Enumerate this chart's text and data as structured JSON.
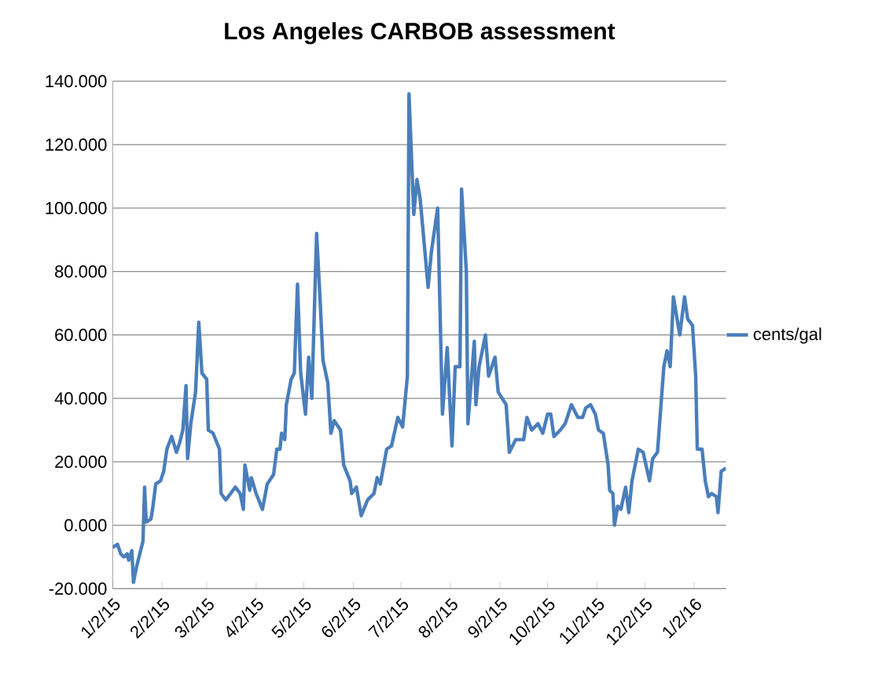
{
  "chart_data": {
    "type": "line",
    "title": "Los Angeles CARBOB assessment",
    "x": [
      "2015-01-02",
      "2015-01-05",
      "2015-01-07",
      "2015-01-09",
      "2015-01-11",
      "2015-01-12",
      "2015-01-14",
      "2015-01-15",
      "2015-01-17",
      "2015-01-19",
      "2015-01-21",
      "2015-01-22",
      "2015-01-23",
      "2015-01-26",
      "2015-01-27",
      "2015-01-29",
      "2015-02-01",
      "2015-02-03",
      "2015-02-05",
      "2015-02-08",
      "2015-02-11",
      "2015-02-13",
      "2015-02-15",
      "2015-02-17",
      "2015-02-18",
      "2015-02-20",
      "2015-02-23",
      "2015-02-25",
      "2015-02-27",
      "2015-03-02",
      "2015-03-03",
      "2015-03-06",
      "2015-03-10",
      "2015-03-11",
      "2015-03-14",
      "2015-03-17",
      "2015-03-20",
      "2015-03-23",
      "2015-03-25",
      "2015-03-26",
      "2015-03-29",
      "2015-03-30",
      "2015-04-02",
      "2015-04-06",
      "2015-04-09",
      "2015-04-13",
      "2015-04-15",
      "2015-04-17",
      "2015-04-18",
      "2015-04-20",
      "2015-04-21",
      "2015-04-24",
      "2015-04-26",
      "2015-04-28",
      "2015-04-30",
      "2015-05-03",
      "2015-05-05",
      "2015-05-07",
      "2015-05-10",
      "2015-05-12",
      "2015-05-14",
      "2015-05-17",
      "2015-05-19",
      "2015-05-21",
      "2015-05-25",
      "2015-05-27",
      "2015-05-31",
      "2015-06-01",
      "2015-06-04",
      "2015-06-07",
      "2015-06-11",
      "2015-06-15",
      "2015-06-17",
      "2015-06-19",
      "2015-06-23",
      "2015-06-26",
      "2015-06-30",
      "2015-07-03",
      "2015-07-06",
      "2015-07-07",
      "2015-07-10",
      "2015-07-12",
      "2015-07-14",
      "2015-07-19",
      "2015-07-21",
      "2015-07-25",
      "2015-07-28",
      "2015-07-31",
      "2015-08-03",
      "2015-08-05",
      "2015-08-08",
      "2015-08-09",
      "2015-08-12",
      "2015-08-13",
      "2015-08-17",
      "2015-08-18",
      "2015-08-20",
      "2015-08-24",
      "2015-08-26",
      "2015-08-30",
      "2015-09-01",
      "2015-09-06",
      "2015-09-08",
      "2015-09-12",
      "2015-09-17",
      "2015-09-19",
      "2015-09-22",
      "2015-09-26",
      "2015-09-29",
      "2015-10-02",
      "2015-10-04",
      "2015-10-06",
      "2015-10-10",
      "2015-10-13",
      "2015-10-17",
      "2015-10-21",
      "2015-10-24",
      "2015-10-26",
      "2015-10-29",
      "2015-11-01",
      "2015-11-03",
      "2015-11-06",
      "2015-11-09",
      "2015-11-10",
      "2015-11-12",
      "2015-11-13",
      "2015-11-15",
      "2015-11-17",
      "2015-11-20",
      "2015-11-22",
      "2015-11-24",
      "2015-11-28",
      "2015-12-01",
      "2015-12-05",
      "2015-12-07",
      "2015-12-10",
      "2015-12-14",
      "2015-12-16",
      "2015-12-18",
      "2015-12-20",
      "2015-12-23",
      "2015-12-24",
      "2015-12-27",
      "2015-12-29",
      "2016-01-01",
      "2016-01-03",
      "2016-01-04",
      "2016-01-07",
      "2016-01-09",
      "2016-01-11",
      "2016-01-13",
      "2016-01-16",
      "2016-01-17",
      "2016-01-19",
      "2016-01-22"
    ],
    "series": [
      {
        "name": "cents/gal",
        "color": "#4a7ebb",
        "values": [
          -7,
          -6,
          -9,
          -10,
          -9,
          -11,
          -8,
          -18,
          -13,
          -9,
          -5,
          12,
          1,
          2,
          5,
          13,
          14,
          17,
          24,
          28,
          23,
          26,
          30,
          44,
          21,
          32,
          42,
          64,
          48,
          46,
          30,
          29,
          24,
          10,
          8,
          10,
          12,
          10,
          5,
          19,
          11,
          15,
          10,
          5,
          13,
          16,
          24,
          24,
          29,
          27,
          38,
          46,
          48,
          76,
          48,
          35,
          53,
          40,
          92,
          73,
          52,
          45,
          29,
          33,
          30,
          19,
          14,
          10,
          12,
          3,
          8,
          10,
          15,
          13,
          24,
          25,
          34,
          31,
          47,
          136,
          98,
          109,
          103,
          75,
          86,
          100,
          35,
          56,
          25,
          50,
          50,
          106,
          80,
          32,
          58,
          38,
          50,
          60,
          47,
          53,
          42,
          38,
          23,
          27,
          27,
          34,
          30,
          32,
          29,
          35,
          35,
          28,
          30,
          32,
          38,
          34,
          34,
          37,
          38,
          35,
          30,
          29,
          19,
          11,
          10,
          0,
          6,
          5,
          12,
          4,
          14,
          24,
          23,
          14,
          21,
          23,
          50,
          55,
          50,
          72,
          63,
          60,
          72,
          65,
          63,
          47,
          24,
          24,
          14,
          9,
          10,
          9,
          4,
          17,
          18
        ]
      }
    ],
    "xlim": [
      "2015-01-02",
      "2016-01-22"
    ],
    "xticks": [
      {
        "value": "2015-01-02",
        "label": "1/2/15"
      },
      {
        "value": "2015-02-02",
        "label": "2/2/15"
      },
      {
        "value": "2015-03-02",
        "label": "3/2/15"
      },
      {
        "value": "2015-04-02",
        "label": "4/2/15"
      },
      {
        "value": "2015-05-02",
        "label": "5/2/15"
      },
      {
        "value": "2015-06-02",
        "label": "6/2/15"
      },
      {
        "value": "2015-07-02",
        "label": "7/2/15"
      },
      {
        "value": "2015-08-02",
        "label": "8/2/15"
      },
      {
        "value": "2015-09-02",
        "label": "9/2/15"
      },
      {
        "value": "2015-10-02",
        "label": "10/2/15"
      },
      {
        "value": "2015-11-02",
        "label": "11/2/15"
      },
      {
        "value": "2015-12-02",
        "label": "12/2/15"
      },
      {
        "value": "2016-01-02",
        "label": "1/2/16"
      }
    ],
    "ylim": [
      -20,
      140
    ],
    "yticks": [
      {
        "value": -20,
        "label": "-20.000"
      },
      {
        "value": 0,
        "label": "0.000"
      },
      {
        "value": 20,
        "label": "20.000"
      },
      {
        "value": 40,
        "label": "40.000"
      },
      {
        "value": 60,
        "label": "60.000"
      },
      {
        "value": 80,
        "label": "80.000"
      },
      {
        "value": 100,
        "label": "100.000"
      },
      {
        "value": 120,
        "label": "120.000"
      },
      {
        "value": 140,
        "label": "140.000"
      }
    ],
    "grid": "y",
    "legend": "right"
  }
}
